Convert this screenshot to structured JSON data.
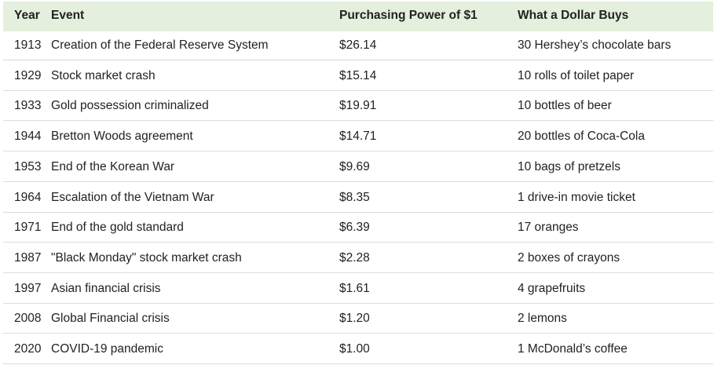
{
  "table": {
    "columns": [
      "Year",
      "Event",
      "Purchasing Power of $1",
      "What a Dollar Buys"
    ],
    "rows": [
      [
        "1913",
        "Creation of the Federal Reserve System",
        "$26.14",
        "30 Hershey’s chocolate bars"
      ],
      [
        "1929",
        "Stock market crash",
        "$15.14",
        "10 rolls of toilet paper"
      ],
      [
        "1933",
        "Gold possession criminalized",
        "$19.91",
        "10 bottles of beer"
      ],
      [
        "1944",
        "Bretton Woods agreement",
        "$14.71",
        "20 bottles of Coca-Cola"
      ],
      [
        "1953",
        "End of the Korean War",
        "$9.69",
        "10 bags of pretzels"
      ],
      [
        "1964",
        "Escalation of the Vietnam War",
        "$8.35",
        "1 drive-in movie ticket"
      ],
      [
        "1971",
        "End of the gold standard",
        "$6.39",
        "17 oranges"
      ],
      [
        "1987",
        "\"Black Monday\" stock market crash",
        "$2.28",
        "2 boxes of crayons"
      ],
      [
        "1997",
        "Asian financial crisis",
        "$1.61",
        "4 grapefruits"
      ],
      [
        "2008",
        "Global Financial crisis",
        "$1.20",
        "2 lemons"
      ],
      [
        "2020",
        "COVID-19 pandemic",
        "$1.00",
        "1 McDonald’s coffee"
      ]
    ]
  }
}
